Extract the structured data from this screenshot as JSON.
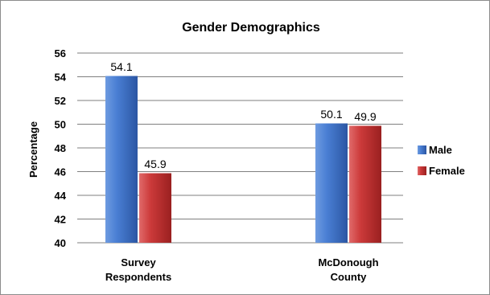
{
  "chart_data": {
    "type": "bar",
    "title": "Gender Demographics",
    "xlabel": "",
    "ylabel": "Percentage",
    "ylim": [
      40,
      56
    ],
    "yticks": [
      40,
      42,
      44,
      46,
      48,
      50,
      52,
      54,
      56
    ],
    "categories": [
      [
        "Survey",
        "Respondents"
      ],
      [
        "McDonough",
        "County"
      ]
    ],
    "series": [
      {
        "name": "Male",
        "values": [
          54.1,
          50.1
        ],
        "color": "#3d6fc4"
      },
      {
        "name": "Female",
        "values": [
          45.9,
          49.9
        ],
        "color": "#c43232"
      }
    ],
    "data_labels": [
      [
        "54.1",
        "50.1"
      ],
      [
        "45.9",
        "49.9"
      ]
    ],
    "grid": true,
    "legend": "right"
  }
}
